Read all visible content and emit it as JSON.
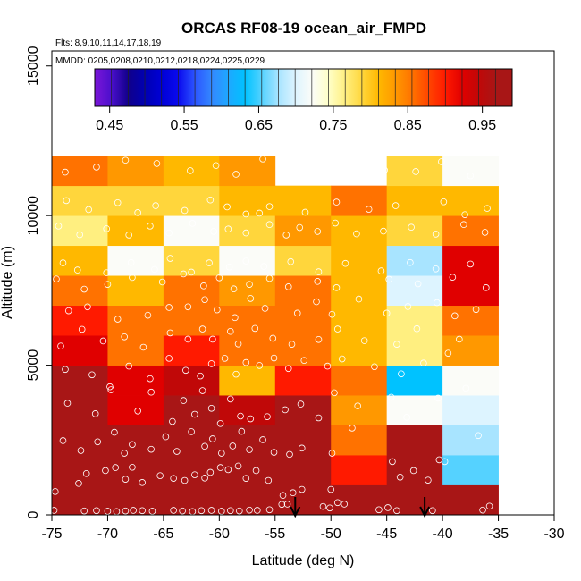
{
  "chart_data": {
    "type": "heatmap",
    "title": "ORCAS RF08-19 ocean_air_FMPD",
    "flights_note": "Flts: 8,9,10,11,14,17,18,19",
    "dates_note": "MMDD: 0205,0208,0210,0212,0218,0224,0225,0229",
    "xlabel": "Latitude (deg N)",
    "ylabel": "Altitude (m)",
    "xlim": [
      -75,
      -30
    ],
    "ylim": [
      0,
      15500
    ],
    "x_ticks": [
      -75,
      -70,
      -65,
      -60,
      -55,
      -50,
      -45,
      -40,
      -35,
      -30
    ],
    "x_tick_labels": [
      "-75",
      "-70",
      "-65",
      "-60",
      "-55",
      "-50",
      "-45",
      "-40",
      "-35",
      "-30"
    ],
    "y_ticks": [
      0,
      5000,
      10000,
      15000
    ],
    "y_tick_labels": [
      "0",
      "5000",
      "10000",
      "15000"
    ],
    "colorbar": {
      "min": 0.43,
      "max": 0.99,
      "step": 0.02,
      "ticks": [
        0.45,
        0.55,
        0.65,
        0.75,
        0.85,
        0.95
      ],
      "tick_labels": [
        "0.45",
        "0.55",
        "0.65",
        "0.75",
        "0.85",
        "0.95"
      ],
      "colors": [
        "#7a16d8",
        "#4b0fcc",
        "#10008a",
        "#0000b2",
        "#0000d6",
        "#0a0aee",
        "#2c55ff",
        "#3388ff",
        "#1ea8ff",
        "#00c2ff",
        "#55d2ff",
        "#a8e4ff",
        "#ddf4ff",
        "#fbfcf8",
        "#ffffc8",
        "#ffef80",
        "#ffd63c",
        "#ffb800",
        "#ff9800",
        "#ff7200",
        "#ff4400",
        "#ff1a00",
        "#e00000",
        "#c00808",
        "#a81616"
      ]
    },
    "lat_bin_edges": [
      -75,
      -70,
      -65,
      -60,
      -55,
      -50,
      -45,
      -40,
      -35
    ],
    "alt_bin_size": 1000,
    "cells": [
      [
        0.97,
        0.97,
        0.97,
        0.97,
        0.97,
        0.97,
        0.97,
        0.97
      ],
      [
        0.95,
        0.95,
        0.95,
        0.95,
        0.95,
        0.85,
        0.91,
        0.63
      ],
      [
        0.93,
        0.95,
        0.95,
        0.95,
        0.95,
        0.83,
        0.93,
        0.65
      ],
      [
        0.93,
        0.87,
        0.93,
        0.89,
        0.91,
        0.79,
        0.71,
        0.67
      ],
      [
        0.93,
        0.87,
        0.89,
        0.77,
        0.85,
        0.81,
        0.61,
        0.71
      ],
      [
        0.87,
        0.83,
        0.85,
        0.83,
        0.83,
        0.77,
        0.73,
        0.79
      ],
      [
        0.85,
        0.83,
        0.83,
        0.83,
        0.83,
        0.77,
        0.73,
        0.83
      ],
      [
        0.83,
        0.77,
        0.83,
        0.79,
        0.81,
        0.77,
        0.69,
        0.87
      ],
      [
        0.77,
        0.71,
        0.75,
        0.71,
        0.75,
        0.77,
        0.65,
        0.87
      ],
      [
        0.73,
        0.77,
        0.71,
        0.75,
        0.79,
        0.77,
        0.75,
        0.81
      ],
      [
        0.75,
        0.75,
        0.75,
        0.77,
        0.77,
        0.83,
        0.77,
        0.77
      ],
      [
        0.81,
        0.79,
        0.77,
        0.79,
        null,
        null,
        0.75,
        0.71
      ]
    ],
    "observations": [
      [
        -74.8,
        150
      ],
      [
        -72.1,
        130
      ],
      [
        -71.0,
        140
      ],
      [
        -70.0,
        120
      ],
      [
        -69.2,
        110
      ],
      [
        -68.4,
        130
      ],
      [
        -67.7,
        150
      ],
      [
        -66.9,
        140
      ],
      [
        -66.0,
        120
      ],
      [
        -64.1,
        150
      ],
      [
        -63.3,
        130
      ],
      [
        -62.4,
        110
      ],
      [
        -61.6,
        140
      ],
      [
        -60.7,
        150
      ],
      [
        -59.8,
        120
      ],
      [
        -59.0,
        140
      ],
      [
        -58.2,
        130
      ],
      [
        -57.3,
        160
      ],
      [
        -56.6,
        150
      ],
      [
        -55.5,
        170
      ],
      [
        -54.4,
        350
      ],
      [
        -53.9,
        360
      ],
      [
        -50.7,
        280
      ],
      [
        -50.1,
        230
      ],
      [
        -49.4,
        410
      ],
      [
        -48.8,
        360
      ],
      [
        -45.7,
        170
      ],
      [
        -44.9,
        240
      ],
      [
        -44.1,
        140
      ],
      [
        -40.9,
        140
      ],
      [
        -36.4,
        160
      ],
      [
        -35.8,
        290
      ],
      [
        -74.7,
        780
      ],
      [
        -72.6,
        1050
      ],
      [
        -71.9,
        1380
      ],
      [
        -70.2,
        1480
      ],
      [
        -69.3,
        1580
      ],
      [
        -68.4,
        1190
      ],
      [
        -67.8,
        1590
      ],
      [
        -66.9,
        1080
      ],
      [
        -65.3,
        1310
      ],
      [
        -64.1,
        1220
      ],
      [
        -63.1,
        1150
      ],
      [
        -62.2,
        1340
      ],
      [
        -61.3,
        1230
      ],
      [
        -60.8,
        1420
      ],
      [
        -59.9,
        1580
      ],
      [
        -59.2,
        1510
      ],
      [
        -58.3,
        1630
      ],
      [
        -57.6,
        1220
      ],
      [
        -56.7,
        1480
      ],
      [
        -55.6,
        1150
      ],
      [
        -54.3,
        650
      ],
      [
        -53.4,
        740
      ],
      [
        -52.6,
        850
      ],
      [
        -50.0,
        850
      ],
      [
        -44.5,
        1780
      ],
      [
        -43.8,
        1260
      ],
      [
        -42.6,
        1480
      ],
      [
        -41.3,
        1160
      ],
      [
        -40.3,
        1840
      ],
      [
        -39.8,
        1780
      ],
      [
        -74.0,
        2480
      ],
      [
        -72.4,
        2150
      ],
      [
        -70.9,
        2440
      ],
      [
        -69.4,
        2760
      ],
      [
        -68.5,
        2060
      ],
      [
        -67.8,
        2350
      ],
      [
        -66.1,
        2190
      ],
      [
        -64.8,
        2610
      ],
      [
        -63.8,
        2120
      ],
      [
        -62.5,
        2780
      ],
      [
        -61.3,
        2290
      ],
      [
        -60.6,
        2540
      ],
      [
        -59.8,
        2060
      ],
      [
        -58.8,
        2300
      ],
      [
        -58.0,
        2790
      ],
      [
        -57.3,
        2180
      ],
      [
        -56.1,
        2510
      ],
      [
        -55.1,
        2090
      ],
      [
        -53.7,
        2020
      ],
      [
        -52.6,
        2230
      ],
      [
        -49.9,
        2060
      ],
      [
        -48.1,
        2900
      ],
      [
        -36.8,
        2650
      ],
      [
        -73.6,
        3730
      ],
      [
        -71.1,
        3380
      ],
      [
        -69.7,
        4180
      ],
      [
        -67.3,
        3470
      ],
      [
        -66.1,
        4100
      ],
      [
        -64.2,
        3120
      ],
      [
        -63.2,
        3820
      ],
      [
        -62.2,
        3360
      ],
      [
        -61.5,
        4150
      ],
      [
        -60.7,
        3560
      ],
      [
        -59.9,
        3050
      ],
      [
        -59.0,
        3870
      ],
      [
        -58.1,
        3300
      ],
      [
        -57.2,
        3210
      ],
      [
        -55.7,
        3280
      ],
      [
        -54.1,
        3510
      ],
      [
        -52.7,
        3700
      ],
      [
        -51.1,
        3240
      ],
      [
        -49.7,
        4080
      ],
      [
        -47.6,
        3640
      ],
      [
        -44.6,
        3930
      ],
      [
        -43.2,
        3260
      ],
      [
        -40.4,
        3900
      ],
      [
        -37.9,
        4230
      ],
      [
        -73.8,
        4860
      ],
      [
        -71.4,
        4680
      ],
      [
        -69.8,
        4280
      ],
      [
        -68.1,
        4970
      ],
      [
        -66.2,
        4550
      ],
      [
        -64.5,
        5230
      ],
      [
        -63.0,
        4830
      ],
      [
        -61.7,
        4640
      ],
      [
        -60.7,
        5050
      ],
      [
        -59.5,
        5230
      ],
      [
        -58.5,
        4700
      ],
      [
        -57.6,
        5090
      ],
      [
        -56.4,
        4990
      ],
      [
        -55.1,
        5240
      ],
      [
        -53.8,
        4890
      ],
      [
        -52.4,
        5160
      ],
      [
        -50.3,
        4970
      ],
      [
        -49.0,
        5210
      ],
      [
        -46.1,
        4950
      ],
      [
        -43.7,
        4710
      ],
      [
        -41.7,
        5070
      ],
      [
        -39.5,
        5400
      ],
      [
        -74.2,
        5640
      ],
      [
        -72.3,
        6200
      ],
      [
        -70.4,
        5810
      ],
      [
        -68.5,
        5950
      ],
      [
        -66.8,
        5600
      ],
      [
        -64.4,
        6080
      ],
      [
        -62.8,
        5870
      ],
      [
        -61.5,
        6210
      ],
      [
        -60.6,
        5870
      ],
      [
        -59.0,
        6130
      ],
      [
        -58.3,
        5710
      ],
      [
        -56.8,
        6230
      ],
      [
        -55.2,
        5900
      ],
      [
        -53.5,
        5700
      ],
      [
        -51.1,
        5860
      ],
      [
        -49.4,
        6210
      ],
      [
        -47.0,
        5820
      ],
      [
        -44.1,
        5700
      ],
      [
        -42.3,
        6220
      ],
      [
        -38.5,
        5870
      ],
      [
        -73.5,
        6820
      ],
      [
        -71.8,
        6950
      ],
      [
        -69.1,
        6540
      ],
      [
        -66.4,
        6670
      ],
      [
        -64.5,
        6930
      ],
      [
        -62.8,
        6950
      ],
      [
        -61.3,
        7190
      ],
      [
        -60.2,
        6850
      ],
      [
        -58.6,
        6590
      ],
      [
        -57.2,
        7230
      ],
      [
        -55.9,
        6900
      ],
      [
        -53.0,
        6740
      ],
      [
        -51.3,
        7120
      ],
      [
        -49.9,
        6700
      ],
      [
        -47.5,
        7210
      ],
      [
        -45.0,
        6740
      ],
      [
        -43.1,
        6960
      ],
      [
        -40.5,
        7090
      ],
      [
        -38.9,
        6650
      ],
      [
        -37.0,
        6860
      ],
      [
        -74.6,
        7880
      ],
      [
        -72.1,
        7540
      ],
      [
        -70.0,
        7700
      ],
      [
        -67.8,
        7930
      ],
      [
        -65.1,
        7780
      ],
      [
        -63.2,
        8050
      ],
      [
        -61.4,
        7650
      ],
      [
        -60.0,
        7920
      ],
      [
        -58.7,
        7550
      ],
      [
        -57.3,
        7700
      ],
      [
        -55.5,
        7900
      ],
      [
        -53.8,
        7620
      ],
      [
        -51.2,
        7800
      ],
      [
        -49.5,
        7590
      ],
      [
        -44.8,
        7870
      ],
      [
        -42.2,
        7720
      ],
      [
        -39.1,
        7940
      ],
      [
        -36.1,
        7590
      ],
      [
        -74.0,
        8420
      ],
      [
        -72.7,
        8180
      ],
      [
        -70.1,
        8090
      ],
      [
        -67.9,
        8430
      ],
      [
        -65.8,
        8200
      ],
      [
        -64.4,
        8570
      ],
      [
        -62.5,
        8110
      ],
      [
        -60.9,
        8420
      ],
      [
        -59.1,
        8280
      ],
      [
        -57.6,
        8480
      ],
      [
        -56.0,
        8300
      ],
      [
        -53.6,
        8460
      ],
      [
        -51.1,
        8120
      ],
      [
        -48.7,
        8400
      ],
      [
        -45.5,
        8150
      ],
      [
        -42.9,
        8430
      ],
      [
        -40.6,
        8220
      ],
      [
        -37.5,
        8380
      ],
      [
        -74.4,
        9650
      ],
      [
        -72.5,
        9360
      ],
      [
        -70.1,
        9560
      ],
      [
        -68.1,
        9350
      ],
      [
        -66.2,
        9650
      ],
      [
        -64.5,
        9420
      ],
      [
        -62.4,
        9740
      ],
      [
        -60.5,
        9470
      ],
      [
        -59.2,
        9550
      ],
      [
        -57.6,
        9420
      ],
      [
        -55.5,
        9700
      ],
      [
        -54.0,
        9350
      ],
      [
        -52.8,
        9600
      ],
      [
        -51.2,
        9470
      ],
      [
        -49.6,
        9750
      ],
      [
        -47.7,
        9390
      ],
      [
        -45.3,
        9480
      ],
      [
        -42.8,
        9610
      ],
      [
        -40.6,
        9380
      ],
      [
        -38.1,
        9700
      ],
      [
        -36.2,
        9440
      ],
      [
        -73.7,
        10500
      ],
      [
        -71.7,
        10200
      ],
      [
        -69.1,
        10430
      ],
      [
        -67.3,
        10100
      ],
      [
        -65.7,
        10330
      ],
      [
        -63.1,
        10170
      ],
      [
        -60.8,
        10520
      ],
      [
        -59.3,
        10290
      ],
      [
        -57.6,
        10050
      ],
      [
        -56.4,
        10080
      ],
      [
        -55.5,
        10300
      ],
      [
        -52.3,
        10110
      ],
      [
        -49.5,
        10450
      ],
      [
        -46.6,
        10210
      ],
      [
        -44.2,
        10330
      ],
      [
        -39.9,
        10460
      ],
      [
        -38.0,
        10030
      ],
      [
        -36.0,
        10240
      ],
      [
        -73.8,
        11450
      ],
      [
        -71.0,
        11620
      ],
      [
        -68.4,
        11850
      ],
      [
        -65.6,
        11740
      ],
      [
        -62.6,
        11500
      ],
      [
        -60.3,
        11670
      ],
      [
        -58.5,
        11380
      ],
      [
        -56.1,
        11890
      ],
      [
        -54.2,
        11300
      ],
      [
        -45.2,
        11520
      ],
      [
        -42.4,
        11470
      ],
      [
        -40.1,
        11800
      ],
      [
        -37.5,
        11330
      ]
    ],
    "arrows_latitude": [
      -53.2,
      -41.6
    ]
  }
}
